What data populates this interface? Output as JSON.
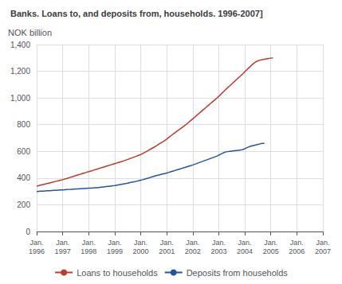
{
  "chart_data": {
    "type": "line",
    "title": "Banks. Loans to, and deposits from, households. 1996-2007]",
    "ylabel": "NOK billion",
    "categories": [
      "Jan.\n1996",
      null,
      null,
      null,
      null,
      null,
      null,
      null,
      null,
      null,
      null,
      null,
      "Jan.\n1997",
      null,
      null,
      null,
      null,
      null,
      null,
      null,
      null,
      null,
      null,
      null,
      "Jan.\n1998",
      null,
      null,
      null,
      null,
      null,
      null,
      null,
      null,
      null,
      null,
      null,
      "Jan.\n1999",
      null,
      null,
      null,
      null,
      null,
      null,
      null,
      null,
      null,
      null,
      null,
      "Jan.\n2000",
      null,
      null,
      null,
      null,
      null,
      null,
      null,
      null,
      null,
      null,
      null,
      "Jan.\n2001",
      null,
      null,
      null,
      null,
      null,
      null,
      null,
      null,
      null,
      null,
      null,
      "Jan.\n2002",
      null,
      null,
      null,
      null,
      null,
      null,
      null,
      null,
      null,
      null,
      null,
      "Jan.\n2003",
      null,
      null,
      null,
      null,
      null,
      null,
      null,
      null,
      null,
      null,
      null,
      "Jan.\n2004",
      null,
      null,
      null,
      null,
      null,
      null,
      null,
      null,
      null,
      null,
      null,
      "Jan.\n2005",
      null,
      null,
      null,
      null,
      null,
      null,
      null,
      null,
      null,
      null,
      null,
      "Jan.\n2006",
      null,
      null,
      null,
      null,
      null,
      null,
      null,
      null,
      null,
      null,
      null,
      "Jan.\n2007"
    ],
    "series": [
      {
        "name": "Loans to households",
        "color": "#c0392b",
        "values": [
          340,
          344,
          348,
          352,
          356,
          360,
          364,
          368,
          372,
          376,
          380,
          384,
          388,
          393,
          398,
          403,
          408,
          413,
          418,
          423,
          428,
          433,
          438,
          443,
          448,
          453,
          458,
          463,
          468,
          473,
          478,
          483,
          488,
          493,
          498,
          503,
          508,
          513,
          518,
          523,
          528,
          534,
          540,
          546,
          552,
          558,
          564,
          570,
          576,
          585,
          594,
          603,
          612,
          621,
          630,
          640,
          650,
          660,
          670,
          680,
          692,
          705,
          718,
          730,
          742,
          754,
          766,
          778,
          790,
          803,
          816,
          830,
          844,
          858,
          872,
          886,
          900,
          914,
          928,
          942,
          956,
          970,
          984,
          998,
          1012,
          1028,
          1044,
          1060,
          1076,
          1090,
          1105,
          1120,
          1135,
          1150,
          1165,
          1180,
          1196,
          1212,
          1228,
          1244,
          1258,
          1270,
          1278,
          1283,
          1287,
          1290,
          1293,
          1296,
          1298,
          1300,
          null,
          null,
          null,
          null,
          null,
          null,
          null,
          null,
          null,
          null,
          null,
          null,
          null,
          null,
          null,
          null,
          null,
          null,
          null,
          null,
          null,
          null,
          null
        ]
      },
      {
        "name": "Deposits from households",
        "color": "#2353a4",
        "values": [
          300,
          301,
          302,
          303,
          304,
          305,
          306,
          307,
          308,
          309,
          310,
          311,
          312,
          313,
          314,
          315,
          316,
          317,
          318,
          319,
          320,
          321,
          322,
          323,
          324,
          325,
          326,
          327,
          328,
          330,
          332,
          334,
          336,
          338,
          340,
          342,
          344,
          347,
          350,
          353,
          356,
          359,
          362,
          366,
          370,
          373,
          376,
          380,
          384,
          388,
          393,
          398,
          403,
          408,
          413,
          418,
          422,
          426,
          430,
          434,
          438,
          443,
          448,
          453,
          458,
          463,
          468,
          473,
          478,
          483,
          488,
          493,
          498,
          504,
          510,
          516,
          522,
          528,
          534,
          540,
          546,
          552,
          558,
          564,
          572,
          580,
          588,
          595,
          598,
          600,
          602,
          604,
          606,
          608,
          610,
          614,
          620,
          628,
          635,
          640,
          644,
          648,
          652,
          656,
          660,
          660,
          null,
          null,
          null,
          null,
          null,
          null,
          null,
          null,
          null,
          null,
          null,
          null,
          null,
          null,
          null,
          null,
          null,
          null,
          null,
          null,
          null,
          null,
          null,
          null,
          null,
          null,
          null
        ]
      }
    ],
    "ylim": [
      0,
      1400
    ],
    "yticks": [
      0,
      200,
      400,
      600,
      800,
      1000,
      1200,
      1400
    ],
    "grid": true,
    "legend": "bottom"
  }
}
